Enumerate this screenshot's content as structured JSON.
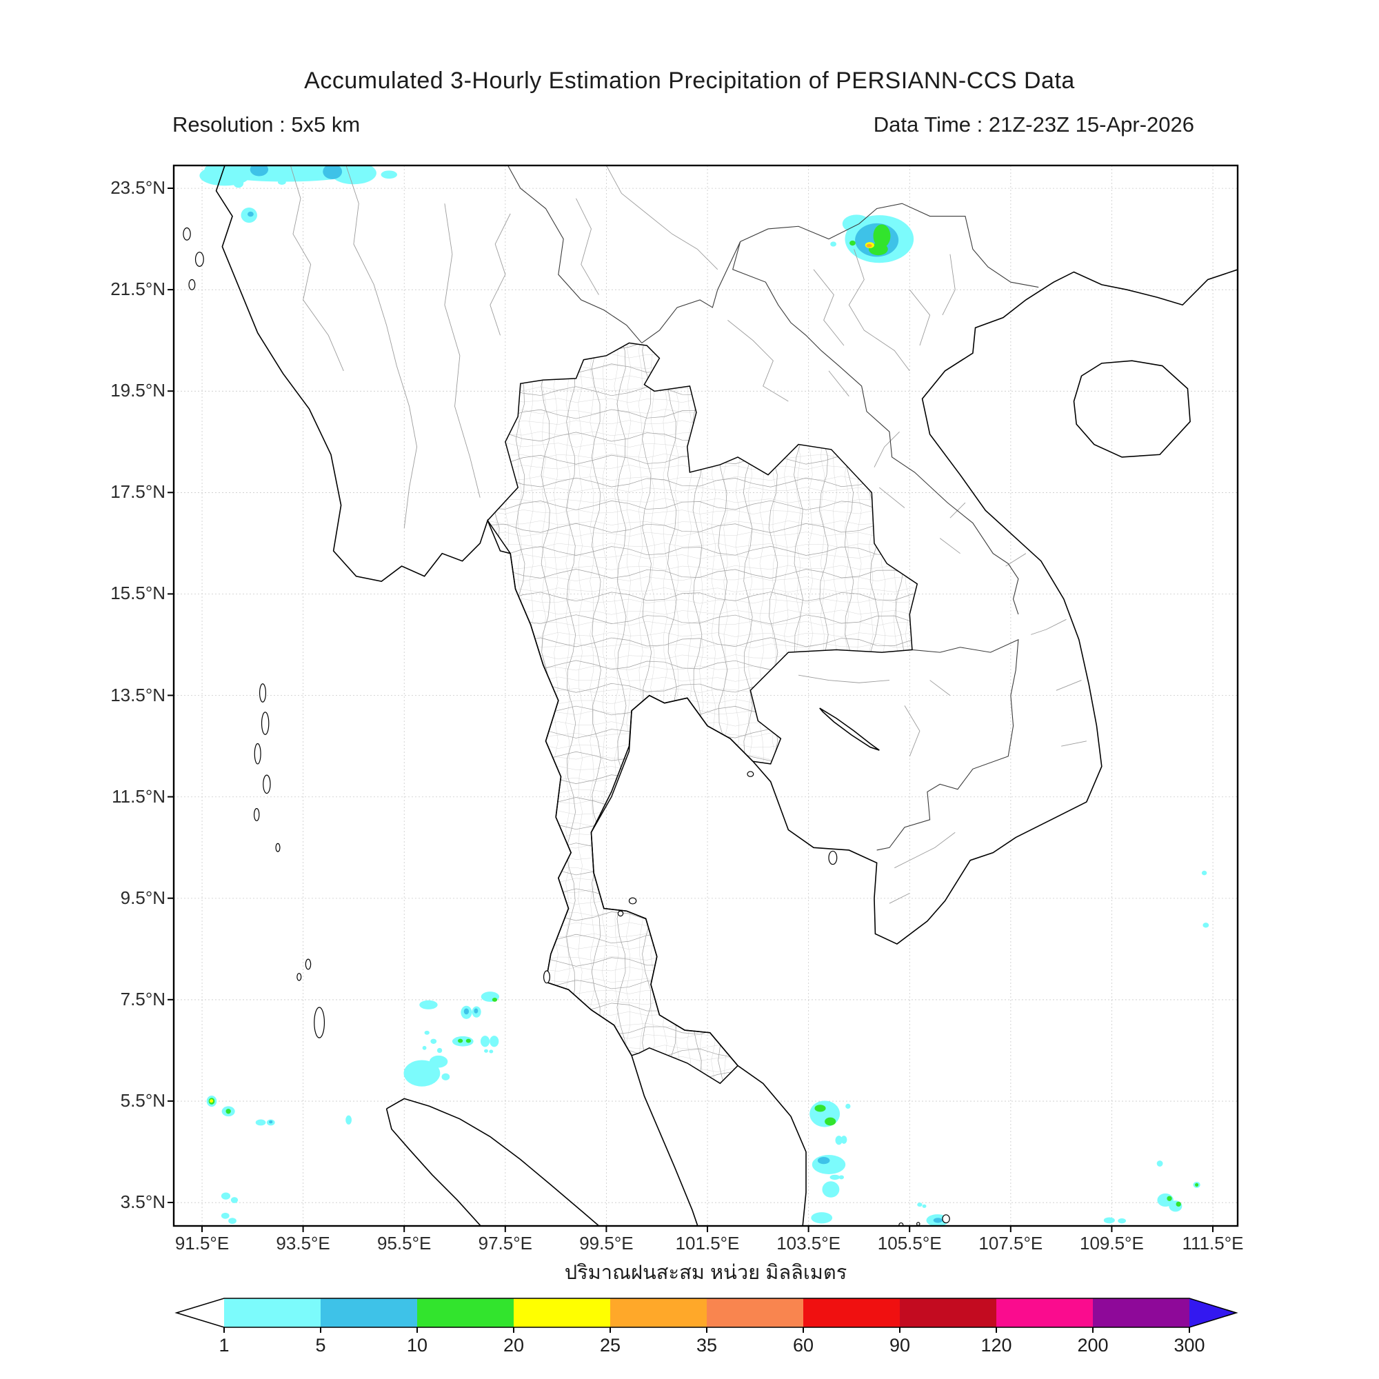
{
  "header": {
    "title": "Accumulated 3-Hourly Estimation Precipitation of PERSIANN-CCS Data",
    "resolution_label": "Resolution : 5x5 km",
    "data_time_label": "Data Time : 21Z-23Z 15-Apr-2026"
  },
  "map": {
    "xlabel": "ปริมาณฝนสะสม หน่วย มิลลิเมตร",
    "x_axis": {
      "unit": "°E",
      "ticks": [
        {
          "deg": 91.5,
          "label": "91.5°E"
        },
        {
          "deg": 93.5,
          "label": "93.5°E"
        },
        {
          "deg": 95.5,
          "label": "95.5°E"
        },
        {
          "deg": 97.5,
          "label": "97.5°E"
        },
        {
          "deg": 99.5,
          "label": "99.5°E"
        },
        {
          "deg": 101.5,
          "label": "101.5°E"
        },
        {
          "deg": 103.5,
          "label": "103.5°E"
        },
        {
          "deg": 105.5,
          "label": "105.5°E"
        },
        {
          "deg": 107.5,
          "label": "107.5°E"
        },
        {
          "deg": 109.5,
          "label": "109.5°E"
        },
        {
          "deg": 111.5,
          "label": "111.5°E"
        }
      ]
    },
    "y_axis": {
      "unit": "°N",
      "ticks": [
        {
          "deg": 23.5,
          "label": "23.5°N"
        },
        {
          "deg": 21.5,
          "label": "21.5°N"
        },
        {
          "deg": 19.5,
          "label": "19.5°N"
        },
        {
          "deg": 17.5,
          "label": "17.5°N"
        },
        {
          "deg": 15.5,
          "label": "15.5°N"
        },
        {
          "deg": 13.5,
          "label": "13.5°N"
        },
        {
          "deg": 11.5,
          "label": "11.5°N"
        },
        {
          "deg": 9.5,
          "label": "9.5°N"
        },
        {
          "deg": 7.5,
          "label": "7.5°N"
        },
        {
          "deg": 5.5,
          "label": "5.5°N"
        },
        {
          "deg": 3.5,
          "label": "3.5°N"
        }
      ]
    }
  },
  "colorbar": {
    "tick_labels": [
      "1",
      "5",
      "10",
      "20",
      "25",
      "35",
      "60",
      "90",
      "120",
      "200",
      "300"
    ],
    "thresholds_mm": [
      1,
      5,
      10,
      20,
      25,
      35,
      60,
      90,
      120,
      200,
      300
    ],
    "segment_colors": [
      "#7cfbfc",
      "#3ec2e8",
      "#32e42d",
      "#ffff00",
      "#ffa829",
      "#f9854f",
      "#f01010",
      "#c30b20",
      "#fa0c8e",
      "#8e0999"
    ],
    "left_arrow_color": "#ffffff",
    "right_arrow_color": "#3318f0"
  },
  "precipitation": {
    "levels": {
      "c1": "#7cfbfc",
      "c2": "#3ec2e8",
      "c3": "#32e42d",
      "c4": "#ffff00",
      "c5": "#ffa829"
    },
    "level_ranges_mm": {
      "c1": "1-5",
      "c2": "5-10",
      "c3": "10-20",
      "c4": "20-25",
      "c5": "25-35"
    },
    "patches": [
      [
        93.15,
        23.88,
        1.6,
        0.25,
        "c1"
      ],
      [
        91.95,
        23.75,
        0.5,
        0.2,
        "c1"
      ],
      [
        94.5,
        23.8,
        0.45,
        0.22,
        "c1"
      ],
      [
        95.2,
        23.77,
        0.16,
        0.08,
        "c1"
      ],
      [
        92.22,
        23.6,
        0.1,
        0.09,
        "c1"
      ],
      [
        93.08,
        23.62,
        0.08,
        0.05,
        "c1"
      ],
      [
        92.43,
        22.97,
        0.16,
        0.15,
        "c1"
      ],
      [
        104.9,
        22.5,
        0.68,
        0.47,
        "c1"
      ],
      [
        104.45,
        22.8,
        0.28,
        0.18,
        "c1"
      ],
      [
        103.99,
        22.4,
        0.06,
        0.05,
        "c1"
      ],
      [
        95.98,
        7.4,
        0.18,
        0.09,
        "c1"
      ],
      [
        96.73,
        7.25,
        0.11,
        0.13,
        "c1"
      ],
      [
        96.93,
        7.26,
        0.09,
        0.11,
        "c1"
      ],
      [
        97.2,
        7.56,
        0.18,
        0.1,
        "c1"
      ],
      [
        95.95,
        6.85,
        0.05,
        0.04,
        "c1"
      ],
      [
        96.08,
        6.68,
        0.06,
        0.05,
        "c1"
      ],
      [
        96.2,
        6.5,
        0.05,
        0.05,
        "c1"
      ],
      [
        95.9,
        6.55,
        0.04,
        0.04,
        "c1"
      ],
      [
        96.66,
        6.68,
        0.21,
        0.1,
        "c1"
      ],
      [
        97.1,
        6.68,
        0.09,
        0.11,
        "c1"
      ],
      [
        97.28,
        6.68,
        0.09,
        0.11,
        "c1"
      ],
      [
        97.12,
        6.49,
        0.04,
        0.035,
        "c1"
      ],
      [
        97.22,
        6.48,
        0.04,
        0.035,
        "c1"
      ],
      [
        95.85,
        6.05,
        0.36,
        0.26,
        "c1"
      ],
      [
        96.18,
        6.28,
        0.18,
        0.12,
        "c1"
      ],
      [
        96.32,
        5.98,
        0.08,
        0.07,
        "c1"
      ],
      [
        91.69,
        5.5,
        0.1,
        0.11,
        "c1"
      ],
      [
        92.02,
        5.3,
        0.13,
        0.1,
        "c1"
      ],
      [
        92.66,
        5.08,
        0.1,
        0.06,
        "c1"
      ],
      [
        92.86,
        5.08,
        0.08,
        0.06,
        "c1"
      ],
      [
        94.4,
        5.13,
        0.06,
        0.09,
        "c1"
      ],
      [
        91.97,
        3.63,
        0.09,
        0.07,
        "c1"
      ],
      [
        92.14,
        3.55,
        0.07,
        0.06,
        "c1"
      ],
      [
        91.96,
        3.24,
        0.08,
        0.06,
        "c1"
      ],
      [
        92.1,
        3.14,
        0.08,
        0.06,
        "c1"
      ],
      [
        103.82,
        5.25,
        0.3,
        0.26,
        "c1"
      ],
      [
        104.28,
        5.4,
        0.05,
        0.05,
        "c1"
      ],
      [
        104.1,
        4.73,
        0.07,
        0.09,
        "c1"
      ],
      [
        104.2,
        4.74,
        0.06,
        0.08,
        "c1"
      ],
      [
        103.9,
        4.25,
        0.33,
        0.19,
        "c1"
      ],
      [
        104.02,
        4.0,
        0.1,
        0.05,
        "c1"
      ],
      [
        104.15,
        4.0,
        0.05,
        0.04,
        "c1"
      ],
      [
        103.94,
        3.76,
        0.17,
        0.16,
        "c1"
      ],
      [
        103.76,
        3.2,
        0.21,
        0.11,
        "c1"
      ],
      [
        105.7,
        3.46,
        0.05,
        0.04,
        "c1"
      ],
      [
        105.79,
        3.43,
        0.04,
        0.035,
        "c1"
      ],
      [
        106.05,
        3.15,
        0.22,
        0.12,
        "c1"
      ],
      [
        110.45,
        4.27,
        0.06,
        0.06,
        "c1"
      ],
      [
        110.56,
        3.55,
        0.16,
        0.13,
        "c1"
      ],
      [
        110.76,
        3.43,
        0.13,
        0.11,
        "c1"
      ],
      [
        111.18,
        3.85,
        0.07,
        0.06,
        "c1"
      ],
      [
        109.45,
        3.15,
        0.11,
        0.06,
        "c1"
      ],
      [
        109.7,
        3.14,
        0.08,
        0.05,
        "c1"
      ],
      [
        111.33,
        10.0,
        0.05,
        0.045,
        "c1"
      ],
      [
        111.36,
        8.97,
        0.06,
        0.05,
        "c1"
      ],
      [
        92.63,
        23.87,
        0.18,
        0.13,
        "c2"
      ],
      [
        94.08,
        23.83,
        0.19,
        0.15,
        "c2"
      ],
      [
        92.46,
        22.99,
        0.06,
        0.05,
        "c2"
      ],
      [
        104.85,
        22.48,
        0.43,
        0.33,
        "c2"
      ],
      [
        96.73,
        7.27,
        0.05,
        0.06,
        "c2"
      ],
      [
        96.92,
        7.28,
        0.04,
        0.05,
        "c2"
      ],
      [
        92.86,
        5.09,
        0.035,
        0.03,
        "c2"
      ],
      [
        103.8,
        4.33,
        0.12,
        0.07,
        "c2"
      ],
      [
        106.06,
        3.15,
        0.09,
        0.05,
        "c2"
      ],
      [
        104.95,
        22.56,
        0.17,
        0.23,
        "c3"
      ],
      [
        104.88,
        22.3,
        0.19,
        0.12,
        "c3"
      ],
      [
        104.37,
        22.42,
        0.06,
        0.05,
        "c3"
      ],
      [
        97.29,
        7.5,
        0.05,
        0.04,
        "c3"
      ],
      [
        96.61,
        6.69,
        0.05,
        0.04,
        "c3"
      ],
      [
        96.77,
        6.69,
        0.05,
        0.04,
        "c3"
      ],
      [
        91.69,
        5.5,
        0.06,
        0.065,
        "c3"
      ],
      [
        92.02,
        5.3,
        0.05,
        0.05,
        "c3"
      ],
      [
        103.73,
        5.36,
        0.11,
        0.07,
        "c3"
      ],
      [
        103.93,
        5.1,
        0.11,
        0.08,
        "c3"
      ],
      [
        110.64,
        3.58,
        0.05,
        0.05,
        "c3"
      ],
      [
        110.82,
        3.47,
        0.05,
        0.05,
        "c3"
      ],
      [
        111.18,
        3.85,
        0.035,
        0.035,
        "c3"
      ],
      [
        104.71,
        22.38,
        0.09,
        0.06,
        "c4"
      ],
      [
        91.685,
        5.505,
        0.035,
        0.035,
        "c4"
      ],
      [
        104.7,
        22.37,
        0.055,
        0.035,
        "c5"
      ]
    ]
  }
}
